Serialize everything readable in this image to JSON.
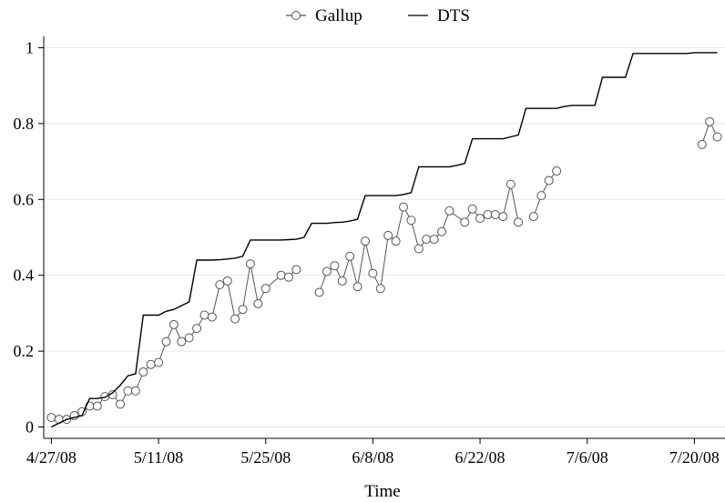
{
  "chart_data": {
    "type": "line",
    "title": "",
    "xlabel": "Time",
    "ylabel": "",
    "x_ticks": [
      "4/27/08",
      "5/11/08",
      "5/25/08",
      "6/8/08",
      "6/22/08",
      "7/6/08",
      "7/20/08"
    ],
    "y_ticks": [
      "0",
      "0.2",
      "0.4",
      "0.6",
      "0.8",
      "1"
    ],
    "xlim": [
      "4/26/08",
      "7/24/08"
    ],
    "ylim": [
      -0.03,
      1.03
    ],
    "grid": true,
    "legend_position": "top-center",
    "colors": {
      "line": "#000000",
      "marker": "#555555",
      "grid": "#e6e6e6"
    },
    "series": [
      {
        "name": "Gallup",
        "marker": "open-circle",
        "points": [
          [
            "4/27/08",
            0.025
          ],
          [
            "4/28/08",
            0.02
          ],
          [
            "4/29/08",
            0.02
          ],
          [
            "4/30/08",
            0.03
          ],
          [
            "5/1/08",
            0.04
          ],
          [
            "5/2/08",
            0.055
          ],
          [
            "5/3/08",
            0.055
          ],
          [
            "5/4/08",
            0.08
          ],
          [
            "5/5/08",
            0.085
          ],
          [
            "5/6/08",
            0.06
          ],
          [
            "5/7/08",
            0.095
          ],
          [
            "5/8/08",
            0.095
          ],
          [
            "5/9/08",
            0.145
          ],
          [
            "5/10/08",
            0.165
          ],
          [
            "5/11/08",
            0.17
          ],
          [
            "5/12/08",
            0.225
          ],
          [
            "5/13/08",
            0.27
          ],
          [
            "5/14/08",
            0.225
          ],
          [
            "5/15/08",
            0.235
          ],
          [
            "5/16/08",
            0.26
          ],
          [
            "5/17/08",
            0.295
          ],
          [
            "5/18/08",
            0.29
          ],
          [
            "5/19/08",
            0.375
          ],
          [
            "5/20/08",
            0.385
          ],
          [
            "5/21/08",
            0.285
          ],
          [
            "5/22/08",
            0.31
          ],
          [
            "5/23/08",
            0.43
          ],
          [
            "5/24/08",
            0.325
          ],
          [
            "5/25/08",
            0.365
          ],
          [
            "5/27/08",
            0.4
          ],
          [
            "5/28/08",
            0.395
          ],
          [
            "5/29/08",
            0.415
          ],
          null,
          [
            "6/1/08",
            0.355
          ],
          [
            "6/2/08",
            0.41
          ],
          [
            "6/3/08",
            0.425
          ],
          [
            "6/4/08",
            0.385
          ],
          [
            "6/5/08",
            0.45
          ],
          [
            "6/6/08",
            0.37
          ],
          [
            "6/7/08",
            0.49
          ],
          [
            "6/8/08",
            0.405
          ],
          [
            "6/9/08",
            0.365
          ],
          [
            "6/10/08",
            0.505
          ],
          [
            "6/11/08",
            0.49
          ],
          [
            "6/12/08",
            0.58
          ],
          [
            "6/13/08",
            0.545
          ],
          [
            "6/14/08",
            0.47
          ],
          [
            "6/15/08",
            0.495
          ],
          [
            "6/16/08",
            0.495
          ],
          [
            "6/17/08",
            0.515
          ],
          [
            "6/18/08",
            0.57
          ],
          [
            "6/20/08",
            0.54
          ],
          [
            "6/21/08",
            0.575
          ],
          [
            "6/22/08",
            0.55
          ],
          [
            "6/23/08",
            0.56
          ],
          [
            "6/24/08",
            0.56
          ],
          [
            "6/25/08",
            0.555
          ],
          [
            "6/26/08",
            0.64
          ],
          [
            "6/27/08",
            0.54
          ],
          null,
          [
            "6/29/08",
            0.555
          ],
          [
            "6/30/08",
            0.61
          ],
          [
            "7/1/08",
            0.65
          ],
          [
            "7/2/08",
            0.675
          ],
          null,
          [
            "7/21/08",
            0.745
          ],
          [
            "7/22/08",
            0.805
          ],
          [
            "7/23/08",
            0.765
          ]
        ]
      },
      {
        "name": "DTS",
        "marker": "none",
        "points": [
          [
            "4/27/08",
            0.0
          ],
          [
            "4/28/08",
            0.01
          ],
          [
            "4/29/08",
            0.02
          ],
          [
            "4/30/08",
            0.025
          ],
          [
            "5/1/08",
            0.03
          ],
          [
            "5/2/08",
            0.075
          ],
          [
            "5/3/08",
            0.075
          ],
          [
            "5/4/08",
            0.078
          ],
          [
            "5/5/08",
            0.09
          ],
          [
            "5/6/08",
            0.11
          ],
          [
            "5/7/08",
            0.135
          ],
          [
            "5/8/08",
            0.14
          ],
          [
            "5/9/08",
            0.295
          ],
          [
            "5/10/08",
            0.295
          ],
          [
            "5/11/08",
            0.295
          ],
          [
            "5/12/08",
            0.305
          ],
          [
            "5/13/08",
            0.31
          ],
          [
            "5/14/08",
            0.32
          ],
          [
            "5/15/08",
            0.33
          ],
          [
            "5/16/08",
            0.44
          ],
          [
            "5/17/08",
            0.44
          ],
          [
            "5/18/08",
            0.44
          ],
          [
            "5/19/08",
            0.441
          ],
          [
            "5/20/08",
            0.443
          ],
          [
            "5/21/08",
            0.445
          ],
          [
            "5/22/08",
            0.45
          ],
          [
            "5/23/08",
            0.493
          ],
          [
            "5/24/08",
            0.493
          ],
          [
            "5/25/08",
            0.493
          ],
          [
            "5/26/08",
            0.493
          ],
          [
            "5/27/08",
            0.493
          ],
          [
            "5/28/08",
            0.494
          ],
          [
            "5/29/08",
            0.495
          ],
          [
            "5/30/08",
            0.5
          ],
          [
            "5/31/08",
            0.537
          ],
          [
            "6/1/08",
            0.537
          ],
          [
            "6/2/08",
            0.537
          ],
          [
            "6/3/08",
            0.539
          ],
          [
            "6/4/08",
            0.54
          ],
          [
            "6/5/08",
            0.543
          ],
          [
            "6/6/08",
            0.548
          ],
          [
            "6/7/08",
            0.61
          ],
          [
            "6/8/08",
            0.61
          ],
          [
            "6/9/08",
            0.61
          ],
          [
            "6/10/08",
            0.61
          ],
          [
            "6/11/08",
            0.61
          ],
          [
            "6/12/08",
            0.613
          ],
          [
            "6/13/08",
            0.618
          ],
          [
            "6/14/08",
            0.686
          ],
          [
            "6/15/08",
            0.686
          ],
          [
            "6/16/08",
            0.686
          ],
          [
            "6/17/08",
            0.686
          ],
          [
            "6/18/08",
            0.686
          ],
          [
            "6/19/08",
            0.69
          ],
          [
            "6/20/08",
            0.695
          ],
          [
            "6/21/08",
            0.76
          ],
          [
            "6/22/08",
            0.76
          ],
          [
            "6/23/08",
            0.76
          ],
          [
            "6/24/08",
            0.76
          ],
          [
            "6/25/08",
            0.76
          ],
          [
            "6/26/08",
            0.765
          ],
          [
            "6/27/08",
            0.77
          ],
          [
            "6/28/08",
            0.84
          ],
          [
            "6/29/08",
            0.84
          ],
          [
            "6/30/08",
            0.84
          ],
          [
            "7/1/08",
            0.84
          ],
          [
            "7/2/08",
            0.84
          ],
          [
            "7/3/08",
            0.845
          ],
          [
            "7/4/08",
            0.848
          ],
          [
            "7/5/08",
            0.848
          ],
          [
            "7/6/08",
            0.848
          ],
          [
            "7/7/08",
            0.848
          ],
          [
            "7/8/08",
            0.922
          ],
          [
            "7/9/08",
            0.922
          ],
          [
            "7/10/08",
            0.922
          ],
          [
            "7/11/08",
            0.922
          ],
          [
            "7/12/08",
            0.985
          ],
          [
            "7/13/08",
            0.985
          ],
          [
            "7/14/08",
            0.985
          ],
          [
            "7/15/08",
            0.985
          ],
          [
            "7/16/08",
            0.985
          ],
          [
            "7/17/08",
            0.985
          ],
          [
            "7/18/08",
            0.985
          ],
          [
            "7/19/08",
            0.985
          ],
          [
            "7/20/08",
            0.987
          ],
          [
            "7/21/08",
            0.987
          ],
          [
            "7/22/08",
            0.987
          ],
          [
            "7/23/08",
            0.987
          ]
        ]
      }
    ]
  }
}
